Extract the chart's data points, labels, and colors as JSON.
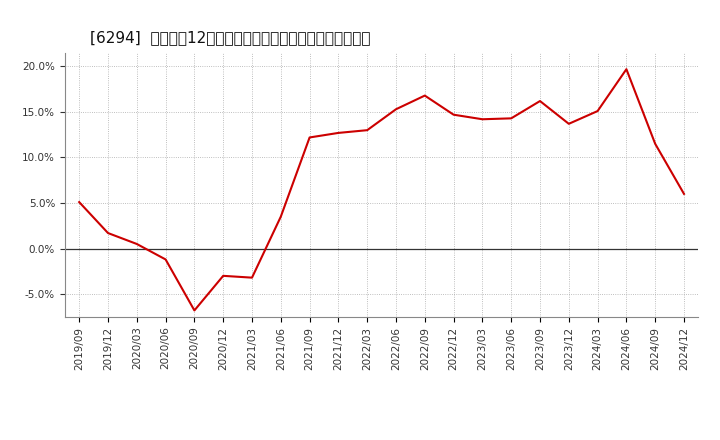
{
  "title": "[6294]  売上高の12か月移動合計の対前年同期増減率の推移",
  "x_labels": [
    "2019/09",
    "2019/12",
    "2020/03",
    "2020/06",
    "2020/09",
    "2020/12",
    "2021/03",
    "2021/06",
    "2021/09",
    "2021/12",
    "2022/03",
    "2022/06",
    "2022/09",
    "2022/12",
    "2023/03",
    "2023/06",
    "2023/09",
    "2023/12",
    "2024/03",
    "2024/06",
    "2024/09",
    "2024/12"
  ],
  "values": [
    5.1,
    1.7,
    0.5,
    -1.2,
    -6.8,
    -3.0,
    -3.2,
    3.5,
    12.2,
    12.7,
    13.0,
    15.3,
    16.8,
    14.7,
    14.2,
    14.3,
    16.2,
    13.7,
    15.1,
    19.7,
    11.5,
    6.0
  ],
  "line_color": "#cc0000",
  "line_width": 1.5,
  "background_color": "#ffffff",
  "grid_color": "#aaaaaa",
  "zero_line_color": "#333333",
  "ylim": [
    -7.5,
    21.5
  ],
  "yticks": [
    -5.0,
    0.0,
    5.0,
    10.0,
    15.0,
    20.0
  ],
  "title_fontsize": 11,
  "tick_fontsize": 7.5
}
